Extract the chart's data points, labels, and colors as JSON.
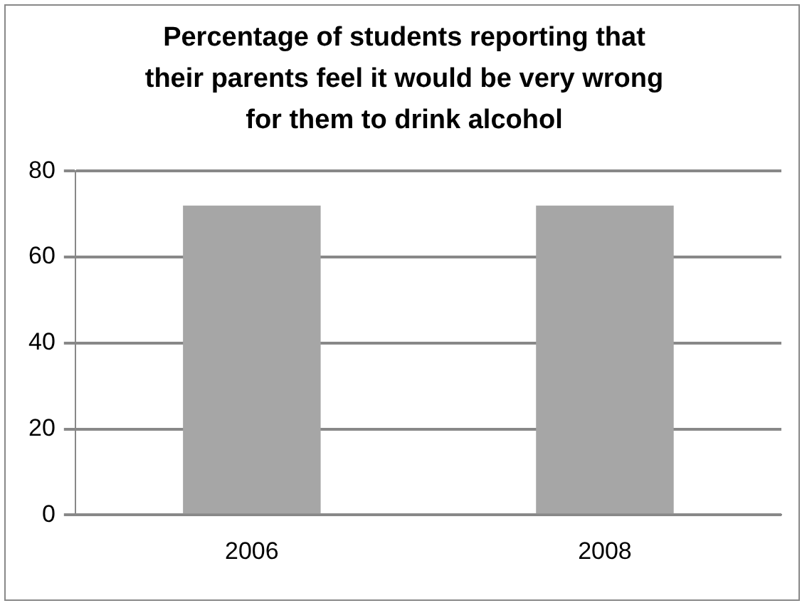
{
  "chart_data": {
    "type": "bar",
    "title": "Percentage of students reporting that their parents feel it would be very wrong for them to drink alcohol",
    "categories": [
      "2006",
      "2008"
    ],
    "values": [
      72,
      72
    ],
    "color": "#a6a6a6",
    "ylim": [
      0,
      80
    ],
    "yticks": [
      0,
      20,
      40,
      60,
      80
    ],
    "grid": "y",
    "legend": false
  }
}
